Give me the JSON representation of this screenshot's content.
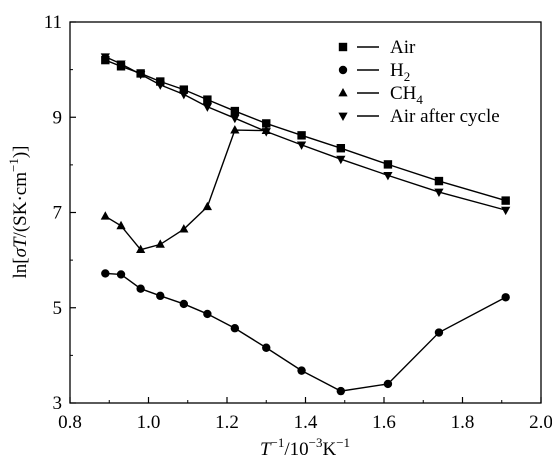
{
  "chart_data": {
    "type": "line",
    "xlabel": {
      "base": "T",
      "sup1": "−1",
      "mid": "/10",
      "sup2": "−3",
      "unit": "K",
      "sup3": "−1"
    },
    "ylabel": {
      "pre": "ln[",
      "sigma": "σ",
      "T": "T",
      "rest": "/(SK·cm",
      "sup": "−1",
      "post": ")]"
    },
    "xlim": [
      0.8,
      2.0
    ],
    "ylim": [
      3,
      11
    ],
    "xticks": [
      0.8,
      1.0,
      1.2,
      1.4,
      1.6,
      1.8,
      2.0
    ],
    "yticks": [
      3,
      5,
      7,
      9,
      11
    ],
    "xtick_labels": [
      "0.8",
      "1.0",
      "1.2",
      "1.4",
      "1.6",
      "1.8",
      "2.0"
    ],
    "ytick_labels": [
      "3",
      "5",
      "7",
      "9",
      "11"
    ],
    "grid": false,
    "legend_position": "top-right",
    "series": [
      {
        "name": "Air",
        "legend_main": "Air",
        "legend_sub": "",
        "marker": "square",
        "x": [
          0.89,
          0.93,
          0.98,
          1.03,
          1.09,
          1.15,
          1.22,
          1.3,
          1.39,
          1.49,
          1.61,
          1.74,
          1.91
        ],
        "y": [
          10.2,
          10.07,
          9.92,
          9.75,
          9.58,
          9.37,
          9.13,
          8.87,
          8.62,
          8.35,
          8.01,
          7.66,
          7.25
        ]
      },
      {
        "name": "H2",
        "legend_main": "H",
        "legend_sub": "2",
        "marker": "circle",
        "x": [
          0.89,
          0.93,
          0.98,
          1.03,
          1.09,
          1.15,
          1.22,
          1.3,
          1.39,
          1.49,
          1.61,
          1.74,
          1.91
        ],
        "y": [
          5.72,
          5.7,
          5.4,
          5.25,
          5.08,
          4.87,
          4.57,
          4.16,
          3.68,
          3.25,
          3.4,
          4.48,
          5.22
        ]
      },
      {
        "name": "CH4",
        "legend_main": "CH",
        "legend_sub": "4",
        "marker": "triangle-up",
        "x": [
          0.89,
          0.93,
          0.98,
          1.03,
          1.09,
          1.15,
          1.22,
          1.3
        ],
        "y": [
          6.92,
          6.72,
          6.22,
          6.33,
          6.65,
          7.12,
          8.73,
          8.72
        ]
      },
      {
        "name": "Air after cycle",
        "legend_main": "Air after cycle",
        "legend_sub": "",
        "marker": "triangle-down",
        "x": [
          0.89,
          0.93,
          0.98,
          1.03,
          1.09,
          1.15,
          1.22,
          1.3,
          1.39,
          1.49,
          1.61,
          1.74,
          1.91
        ],
        "y": [
          10.27,
          10.12,
          9.9,
          9.68,
          9.48,
          9.22,
          8.98,
          8.7,
          8.42,
          8.12,
          7.78,
          7.43,
          7.05
        ]
      }
    ]
  }
}
